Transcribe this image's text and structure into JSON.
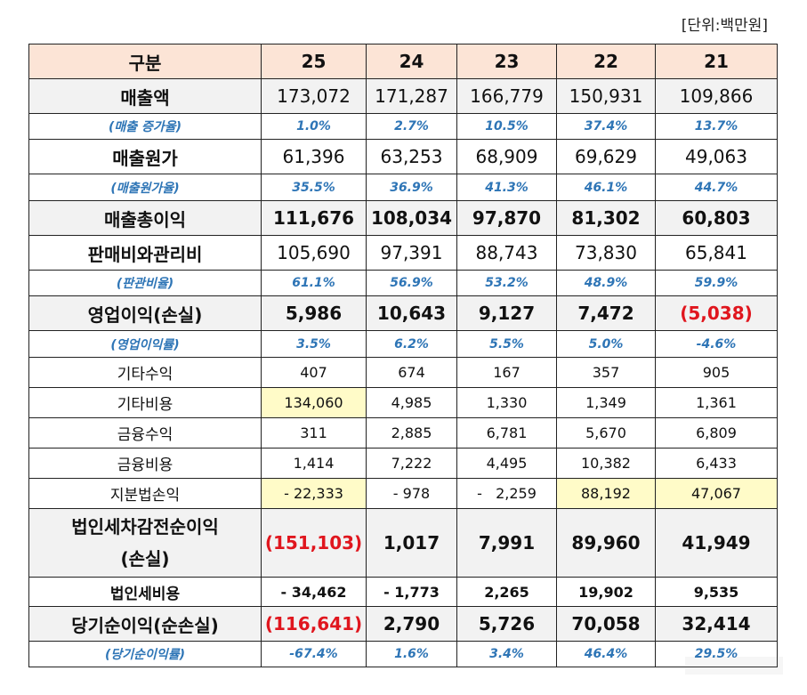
{
  "unit_label": "[단위:백만원]",
  "table": {
    "header": {
      "label": "구분",
      "years": [
        "25",
        "24",
        "23",
        "22",
        "21"
      ]
    },
    "rows": [
      {
        "label": "매출액",
        "values": [
          "173,072",
          "171,287",
          "166,779",
          "150,931",
          "109,866"
        ]
      },
      {
        "label": "(매출 증가율)",
        "values": [
          "1.0%",
          "2.7%",
          "10.5%",
          "37.4%",
          "13.7%"
        ]
      },
      {
        "label": "매출원가",
        "values": [
          "61,396",
          "63,253",
          "68,909",
          "69,629",
          "49,063"
        ]
      },
      {
        "label": "(매출원가율)",
        "values": [
          "35.5%",
          "36.9%",
          "41.3%",
          "46.1%",
          "44.7%"
        ]
      },
      {
        "label": "매출총이익",
        "values": [
          "111,676",
          "108,034",
          "97,870",
          "81,302",
          "60,803"
        ]
      },
      {
        "label": "판매비와관리비",
        "values": [
          "105,690",
          "97,391",
          "88,743",
          "73,830",
          "65,841"
        ]
      },
      {
        "label": "(판관비율)",
        "values": [
          "61.1%",
          "56.9%",
          "53.2%",
          "48.9%",
          "59.9%"
        ]
      },
      {
        "label": "영업이익(손실)",
        "values": [
          "5,986",
          "10,643",
          "9,127",
          "7,472",
          "(5,038)"
        ]
      },
      {
        "label": "(영업이익률)",
        "values": [
          "3.5%",
          "6.2%",
          "5.5%",
          "5.0%",
          "-4.6%"
        ]
      },
      {
        "label": "기타수익",
        "values": [
          "407",
          "674",
          "167",
          "357",
          "905"
        ]
      },
      {
        "label": "기타비용",
        "values": [
          "134,060",
          "4,985",
          "1,330",
          "1,349",
          "1,361"
        ]
      },
      {
        "label": "금융수익",
        "values": [
          "311",
          "2,885",
          "6,781",
          "5,670",
          "6,809"
        ]
      },
      {
        "label": "금융비용",
        "values": [
          "1,414",
          "7,222",
          "4,495",
          "10,382",
          "6,433"
        ]
      },
      {
        "label": "지분법손익",
        "values": [
          "- 22,333",
          "- 978",
          "-   2,259",
          "88,192",
          "47,067"
        ]
      },
      {
        "label_line1": "법인세차감전순이익",
        "label_line2": "(손실)",
        "values": [
          "(151,103)",
          "1,017",
          "7,991",
          "89,960",
          "41,949"
        ]
      },
      {
        "label": "법인세비용",
        "values": [
          "- 34,462",
          "- 1,773",
          "2,265",
          "19,902",
          "9,535"
        ]
      },
      {
        "label": "당기순이익(순손실)",
        "values": [
          "(116,641)",
          "2,790",
          "5,726",
          "70,058",
          "32,414"
        ]
      },
      {
        "label": "(당기순이익률)",
        "values": [
          "-67.4%",
          "1.6%",
          "3.4%",
          "46.4%",
          "29.5%"
        ]
      }
    ]
  },
  "colors": {
    "header_bg": "#fce4d6",
    "gray_row_bg": "#f2f2f2",
    "highlight_bg": "#fffbc8",
    "ratio_text": "#2e75b6",
    "negative_text": "#e0161e"
  }
}
